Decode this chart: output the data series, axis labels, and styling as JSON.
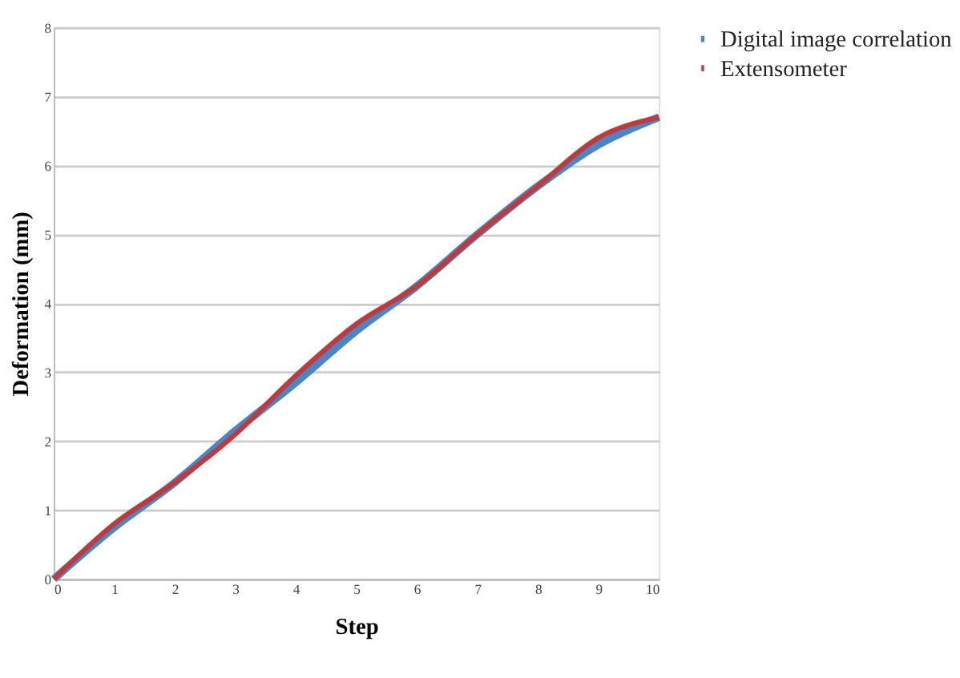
{
  "chart_data": {
    "type": "line",
    "xlabel": "Step",
    "ylabel": "Deformation (mm)",
    "x": [
      0,
      1,
      2,
      3,
      4,
      5,
      6,
      7,
      8,
      9,
      10
    ],
    "series": [
      {
        "name": "Digital image correlation",
        "color": "#4a86c5",
        "values": [
          0,
          0.75,
          1.4,
          2.15,
          2.85,
          3.6,
          4.25,
          5.0,
          5.7,
          6.3,
          6.7
        ]
      },
      {
        "name": "Extensometer",
        "color": "#c0393b",
        "values": [
          0,
          0.8,
          1.4,
          2.1,
          2.95,
          3.7,
          4.25,
          5.0,
          5.7,
          6.4,
          6.7
        ]
      }
    ],
    "xlim": [
      0,
      10
    ],
    "xticks": [
      0,
      1,
      2,
      3,
      4,
      5,
      6,
      7,
      8,
      9,
      10
    ],
    "ylim": [
      0,
      8
    ],
    "yticks": [
      0,
      1,
      2,
      3,
      4,
      5,
      6,
      7,
      8
    ],
    "grid": "y",
    "legend": "right",
    "marker": "none",
    "line_style": "solid"
  }
}
